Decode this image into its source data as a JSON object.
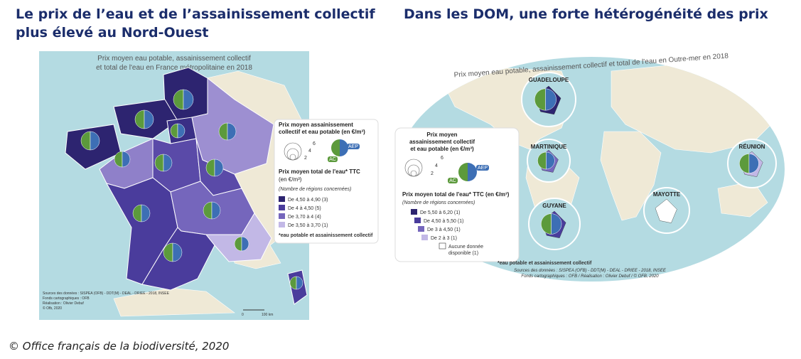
{
  "left": {
    "title": [
      "Le prix de l’eau et de l’assainissement collectif",
      "plus élevé au Nord-Ouest"
    ],
    "map_title": [
      "Prix moyen eau potable, assainissement collectif",
      "et total de l'eau en France métropolitaine en 2018"
    ],
    "legend": {
      "circle_title": [
        "Prix moyen assainissement",
        "collectif et eau potable (en €/m³)"
      ],
      "sizes": [
        "6",
        "4",
        "2"
      ],
      "ac": "AC",
      "aep": "AEP",
      "total_title": [
        "Prix moyen total de l'eau* TTC",
        "(en €/m³)"
      ],
      "count_note": "(Nombre de régions concernées)",
      "classes": [
        "De 4,50 à 4,90 (3)",
        "De 4 à 4,50 (5)",
        "De 3,70 à 4 (4)",
        "De 3,50 à 3,70 (1)"
      ],
      "footnote": "*eau potable et assainissement collectif"
    },
    "sources": [
      "Sources des données : SISPEA (OFB) - DDT(M) - DEAL - DRIEE - 2018, INSEE",
      "Fonds cartographiques : OFB",
      "Réalisation : Olivier Debuf",
      "© Ofb, 2020"
    ],
    "scale": [
      "0",
      "100 km"
    ]
  },
  "right": {
    "title": "Dans les DOM, une forte hétérogénéité des prix",
    "map_title": "Prix moyen eau potable, assainissement collectif et total de l'eau en Outre-mer en 2018",
    "islands": [
      "GUADELOUPE",
      "MARTINIQUE",
      "GUYANE",
      "RÉUNION",
      "MAYOTTE"
    ],
    "legend": {
      "circle_title": [
        "Prix moyen",
        "assainissement collectif",
        "et eau potable (en €/m³)"
      ],
      "sizes": [
        "6",
        "4",
        "2"
      ],
      "ac": "AC",
      "aep": "AEP",
      "total_title": "Prix moyen total de l'eau* TTC (en €/m³)",
      "count_note": "(Nombre de régions concernées)",
      "classes": [
        "De 5,50 à 6,20 (1)",
        "De 4,50 à 5,50 (1)",
        "De 3 à 4,50 (1)",
        "De 2 à 3 (1)",
        "Aucune donnée",
        "disponible (1)"
      ],
      "footnote": "*eau potable et assainissement collectif"
    },
    "sources": [
      "Sources des données : SISPEA (OFB) - DDT(M) - DEAL - DRIEE - 2018, INSEE",
      "Fonds cartographiques : OFB / Réalisation : Olivier Debuf / © OFB, 2020"
    ]
  },
  "caption": "© Office français de la biodiversité, 2020"
}
